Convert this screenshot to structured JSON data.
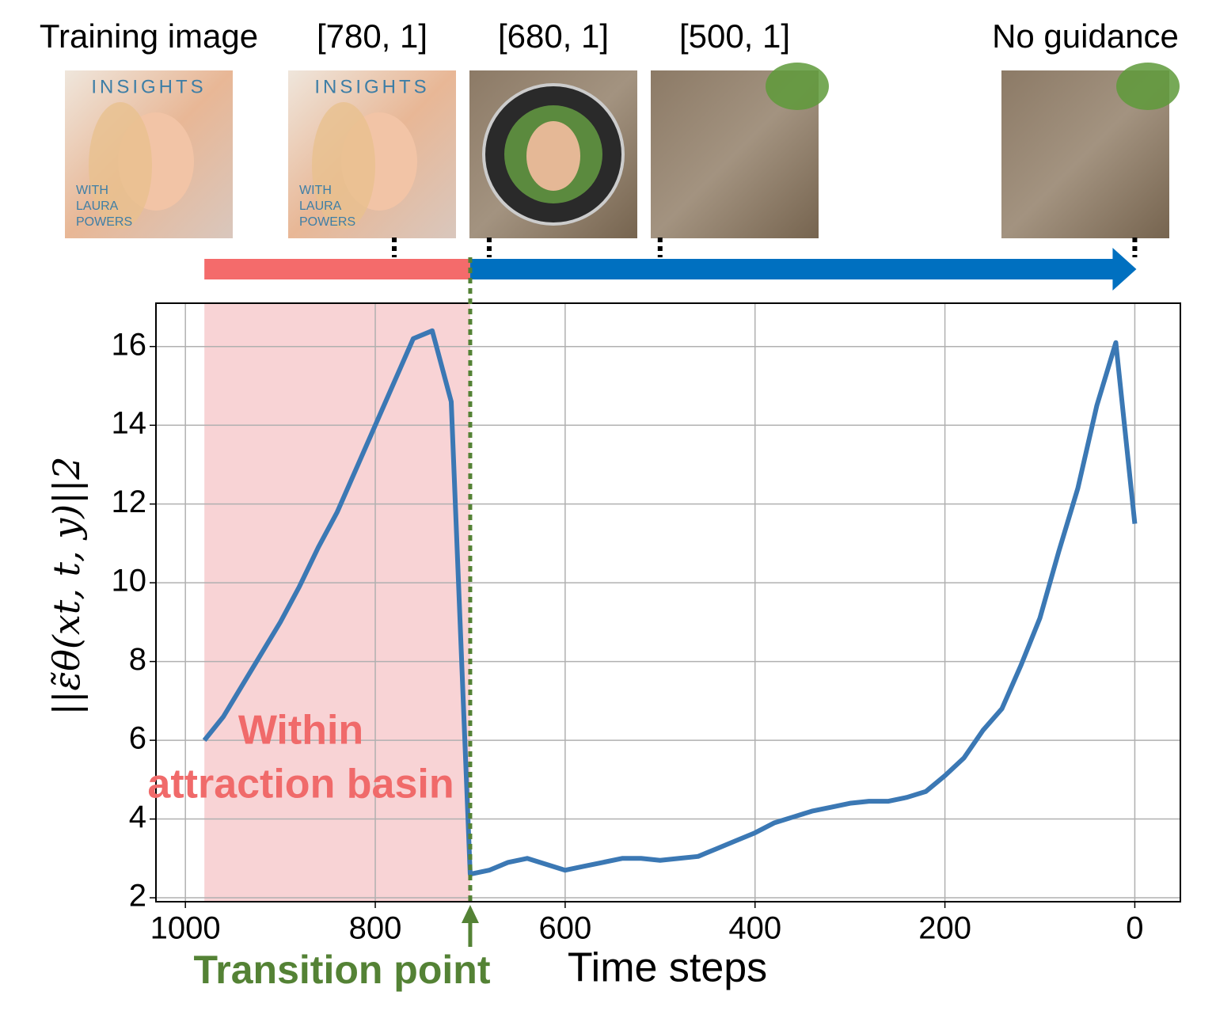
{
  "chart_data": {
    "type": "line",
    "xlabel": "Time steps",
    "ylabel": "||ε̃θ(xt, t, y)||2",
    "x": [
      980,
      960,
      940,
      920,
      900,
      880,
      860,
      840,
      820,
      800,
      780,
      760,
      740,
      720,
      700,
      680,
      660,
      640,
      620,
      600,
      580,
      560,
      540,
      520,
      500,
      480,
      460,
      440,
      420,
      400,
      380,
      360,
      340,
      320,
      300,
      280,
      260,
      240,
      220,
      200,
      180,
      160,
      140,
      120,
      100,
      80,
      60,
      40,
      20,
      0
    ],
    "series": [
      {
        "color": "#3b78b4",
        "values": [
          6.0,
          6.6,
          7.4,
          8.2,
          9.0,
          9.9,
          10.9,
          11.8,
          12.9,
          14.0,
          15.1,
          16.2,
          16.4,
          14.6,
          2.6,
          2.7,
          2.9,
          3.0,
          2.85,
          2.7,
          2.8,
          2.9,
          3.0,
          3.0,
          2.95,
          3.0,
          3.05,
          3.25,
          3.45,
          3.65,
          3.9,
          4.05,
          4.2,
          4.3,
          4.4,
          4.45,
          4.45,
          4.55,
          4.7,
          5.1,
          5.55,
          6.25,
          6.8,
          7.9,
          9.1,
          10.8,
          12.4,
          14.5,
          16.1,
          11.5
        ]
      }
    ],
    "xlim": [
      1031,
      -48
    ],
    "ylim": [
      1.9,
      17.1
    ],
    "xticks": [
      1000,
      800,
      600,
      400,
      200,
      0
    ],
    "yticks": [
      2,
      4,
      6,
      8,
      10,
      12,
      14,
      16
    ],
    "grid": true,
    "highlight": {
      "range": [
        980,
        700
      ],
      "color": "#f8d3d5",
      "label": [
        "Within",
        "attraction basin"
      ],
      "label_color": "#f06a6a"
    },
    "transition": {
      "x": 700,
      "label": "Transition point",
      "color": "#548235"
    },
    "timeline": {
      "before_color": "#f46b6b",
      "after_color": "#0070c0"
    },
    "images": [
      {
        "label": "Training image",
        "timestep": null,
        "kind": "portrait",
        "text": [
          "INSIGHTS",
          "WITH",
          "LAURA",
          "POWERS"
        ]
      },
      {
        "label": "[780, 1]",
        "timestep": 780,
        "kind": "portrait",
        "text": [
          "INSIGHTS",
          "WITH",
          "LAURA",
          "POWERS"
        ]
      },
      {
        "label": "[680, 1]",
        "timestep": 680,
        "kind": "badge"
      },
      {
        "label": "[500, 1]",
        "timestep": 500,
        "kind": "bark"
      },
      {
        "label": "No guidance",
        "timestep": 0,
        "kind": "bark"
      }
    ]
  }
}
